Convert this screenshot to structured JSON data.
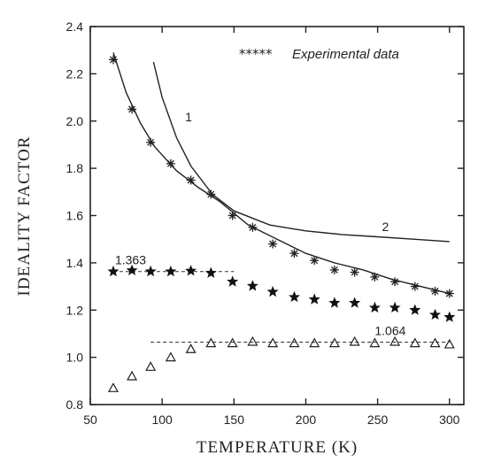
{
  "chart_data": {
    "type": "scatter",
    "xlabel": "TEMPERATURE (K)",
    "ylabel": "IDEALITY FACTOR",
    "xlim": [
      50,
      310
    ],
    "ylim": [
      0.8,
      2.4
    ],
    "x_ticks": [
      50,
      100,
      150,
      200,
      250,
      300
    ],
    "y_ticks": [
      0.8,
      1.0,
      1.2,
      1.4,
      1.6,
      1.8,
      2.0,
      2.2,
      2.4
    ],
    "legend": {
      "marker": "*****",
      "label": "Experimental data",
      "placement": "top-right"
    },
    "series": [
      {
        "marker": "asterisk",
        "x": [
          66,
          79,
          92,
          106,
          120,
          134,
          149,
          163,
          177,
          192,
          206,
          220,
          234,
          248,
          262,
          276,
          290,
          300
        ],
        "y": [
          2.26,
          2.05,
          1.91,
          1.82,
          1.75,
          1.69,
          1.6,
          1.55,
          1.48,
          1.44,
          1.41,
          1.37,
          1.36,
          1.34,
          1.32,
          1.3,
          1.28,
          1.27
        ]
      },
      {
        "marker": "filled-star",
        "x": [
          66,
          79,
          92,
          106,
          120,
          134,
          149,
          163,
          177,
          192,
          206,
          220,
          234,
          248,
          262,
          276,
          290,
          300
        ],
        "y": [
          1.363,
          1.368,
          1.363,
          1.363,
          1.366,
          1.357,
          1.32,
          1.302,
          1.277,
          1.255,
          1.245,
          1.23,
          1.23,
          1.21,
          1.21,
          1.2,
          1.18,
          1.17
        ]
      },
      {
        "marker": "open-triangle",
        "x": [
          66,
          79,
          92,
          106,
          120,
          134,
          149,
          163,
          177,
          192,
          206,
          220,
          234,
          248,
          262,
          276,
          290,
          300
        ],
        "y": [
          0.87,
          0.92,
          0.96,
          1.0,
          1.035,
          1.06,
          1.06,
          1.066,
          1.06,
          1.06,
          1.06,
          1.06,
          1.066,
          1.06,
          1.066,
          1.06,
          1.06,
          1.055
        ]
      }
    ],
    "curves": [
      {
        "label": "1",
        "x": [
          94,
          100,
          110,
          120,
          135,
          150,
          175,
          200,
          225,
          250,
          275,
          300
        ],
        "y": [
          2.25,
          2.1,
          1.93,
          1.81,
          1.69,
          1.62,
          1.56,
          1.535,
          1.52,
          1.51,
          1.5,
          1.49
        ]
      },
      {
        "label": "2",
        "x": [
          66,
          75,
          85,
          95,
          110,
          125,
          140,
          160,
          180,
          200,
          220,
          240,
          260,
          280,
          300
        ],
        "y": [
          2.29,
          2.12,
          1.99,
          1.89,
          1.79,
          1.72,
          1.66,
          1.56,
          1.5,
          1.44,
          1.4,
          1.37,
          1.33,
          1.3,
          1.27
        ]
      }
    ],
    "reference_lines": [
      {
        "label": "1.363",
        "y": 1.363,
        "x_range": [
          66,
          150
        ]
      },
      {
        "label": "1.064",
        "y": 1.064,
        "x_range": [
          92,
          300
        ]
      }
    ]
  }
}
